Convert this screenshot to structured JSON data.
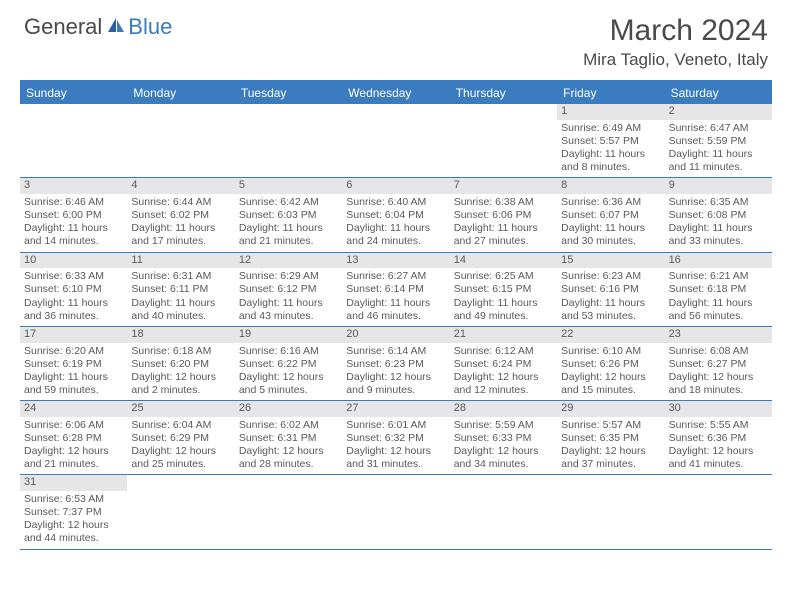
{
  "logo": {
    "part1": "General",
    "part2": "Blue"
  },
  "title": "March 2024",
  "location": "Mira Taglio, Veneto, Italy",
  "colors": {
    "header_bg": "#3b7bbf",
    "daynum_bg": "#e6e6e6",
    "text": "#4a4a4a",
    "border": "#3b7bbf"
  },
  "weekdays": [
    "Sunday",
    "Monday",
    "Tuesday",
    "Wednesday",
    "Thursday",
    "Friday",
    "Saturday"
  ],
  "weeks": [
    [
      {
        "n": "",
        "empty": true
      },
      {
        "n": "",
        "empty": true
      },
      {
        "n": "",
        "empty": true
      },
      {
        "n": "",
        "empty": true
      },
      {
        "n": "",
        "empty": true
      },
      {
        "n": "1",
        "sr": "Sunrise: 6:49 AM",
        "ss": "Sunset: 5:57 PM",
        "dl": "Daylight: 11 hours and 8 minutes."
      },
      {
        "n": "2",
        "sr": "Sunrise: 6:47 AM",
        "ss": "Sunset: 5:59 PM",
        "dl": "Daylight: 11 hours and 11 minutes."
      }
    ],
    [
      {
        "n": "3",
        "sr": "Sunrise: 6:46 AM",
        "ss": "Sunset: 6:00 PM",
        "dl": "Daylight: 11 hours and 14 minutes."
      },
      {
        "n": "4",
        "sr": "Sunrise: 6:44 AM",
        "ss": "Sunset: 6:02 PM",
        "dl": "Daylight: 11 hours and 17 minutes."
      },
      {
        "n": "5",
        "sr": "Sunrise: 6:42 AM",
        "ss": "Sunset: 6:03 PM",
        "dl": "Daylight: 11 hours and 21 minutes."
      },
      {
        "n": "6",
        "sr": "Sunrise: 6:40 AM",
        "ss": "Sunset: 6:04 PM",
        "dl": "Daylight: 11 hours and 24 minutes."
      },
      {
        "n": "7",
        "sr": "Sunrise: 6:38 AM",
        "ss": "Sunset: 6:06 PM",
        "dl": "Daylight: 11 hours and 27 minutes."
      },
      {
        "n": "8",
        "sr": "Sunrise: 6:36 AM",
        "ss": "Sunset: 6:07 PM",
        "dl": "Daylight: 11 hours and 30 minutes."
      },
      {
        "n": "9",
        "sr": "Sunrise: 6:35 AM",
        "ss": "Sunset: 6:08 PM",
        "dl": "Daylight: 11 hours and 33 minutes."
      }
    ],
    [
      {
        "n": "10",
        "sr": "Sunrise: 6:33 AM",
        "ss": "Sunset: 6:10 PM",
        "dl": "Daylight: 11 hours and 36 minutes."
      },
      {
        "n": "11",
        "sr": "Sunrise: 6:31 AM",
        "ss": "Sunset: 6:11 PM",
        "dl": "Daylight: 11 hours and 40 minutes."
      },
      {
        "n": "12",
        "sr": "Sunrise: 6:29 AM",
        "ss": "Sunset: 6:12 PM",
        "dl": "Daylight: 11 hours and 43 minutes."
      },
      {
        "n": "13",
        "sr": "Sunrise: 6:27 AM",
        "ss": "Sunset: 6:14 PM",
        "dl": "Daylight: 11 hours and 46 minutes."
      },
      {
        "n": "14",
        "sr": "Sunrise: 6:25 AM",
        "ss": "Sunset: 6:15 PM",
        "dl": "Daylight: 11 hours and 49 minutes."
      },
      {
        "n": "15",
        "sr": "Sunrise: 6:23 AM",
        "ss": "Sunset: 6:16 PM",
        "dl": "Daylight: 11 hours and 53 minutes."
      },
      {
        "n": "16",
        "sr": "Sunrise: 6:21 AM",
        "ss": "Sunset: 6:18 PM",
        "dl": "Daylight: 11 hours and 56 minutes."
      }
    ],
    [
      {
        "n": "17",
        "sr": "Sunrise: 6:20 AM",
        "ss": "Sunset: 6:19 PM",
        "dl": "Daylight: 11 hours and 59 minutes."
      },
      {
        "n": "18",
        "sr": "Sunrise: 6:18 AM",
        "ss": "Sunset: 6:20 PM",
        "dl": "Daylight: 12 hours and 2 minutes."
      },
      {
        "n": "19",
        "sr": "Sunrise: 6:16 AM",
        "ss": "Sunset: 6:22 PM",
        "dl": "Daylight: 12 hours and 5 minutes."
      },
      {
        "n": "20",
        "sr": "Sunrise: 6:14 AM",
        "ss": "Sunset: 6:23 PM",
        "dl": "Daylight: 12 hours and 9 minutes."
      },
      {
        "n": "21",
        "sr": "Sunrise: 6:12 AM",
        "ss": "Sunset: 6:24 PM",
        "dl": "Daylight: 12 hours and 12 minutes."
      },
      {
        "n": "22",
        "sr": "Sunrise: 6:10 AM",
        "ss": "Sunset: 6:26 PM",
        "dl": "Daylight: 12 hours and 15 minutes."
      },
      {
        "n": "23",
        "sr": "Sunrise: 6:08 AM",
        "ss": "Sunset: 6:27 PM",
        "dl": "Daylight: 12 hours and 18 minutes."
      }
    ],
    [
      {
        "n": "24",
        "sr": "Sunrise: 6:06 AM",
        "ss": "Sunset: 6:28 PM",
        "dl": "Daylight: 12 hours and 21 minutes."
      },
      {
        "n": "25",
        "sr": "Sunrise: 6:04 AM",
        "ss": "Sunset: 6:29 PM",
        "dl": "Daylight: 12 hours and 25 minutes."
      },
      {
        "n": "26",
        "sr": "Sunrise: 6:02 AM",
        "ss": "Sunset: 6:31 PM",
        "dl": "Daylight: 12 hours and 28 minutes."
      },
      {
        "n": "27",
        "sr": "Sunrise: 6:01 AM",
        "ss": "Sunset: 6:32 PM",
        "dl": "Daylight: 12 hours and 31 minutes."
      },
      {
        "n": "28",
        "sr": "Sunrise: 5:59 AM",
        "ss": "Sunset: 6:33 PM",
        "dl": "Daylight: 12 hours and 34 minutes."
      },
      {
        "n": "29",
        "sr": "Sunrise: 5:57 AM",
        "ss": "Sunset: 6:35 PM",
        "dl": "Daylight: 12 hours and 37 minutes."
      },
      {
        "n": "30",
        "sr": "Sunrise: 5:55 AM",
        "ss": "Sunset: 6:36 PM",
        "dl": "Daylight: 12 hours and 41 minutes."
      }
    ],
    [
      {
        "n": "31",
        "sr": "Sunrise: 6:53 AM",
        "ss": "Sunset: 7:37 PM",
        "dl": "Daylight: 12 hours and 44 minutes."
      },
      {
        "n": "",
        "empty": true
      },
      {
        "n": "",
        "empty": true
      },
      {
        "n": "",
        "empty": true
      },
      {
        "n": "",
        "empty": true
      },
      {
        "n": "",
        "empty": true
      },
      {
        "n": "",
        "empty": true
      }
    ]
  ]
}
